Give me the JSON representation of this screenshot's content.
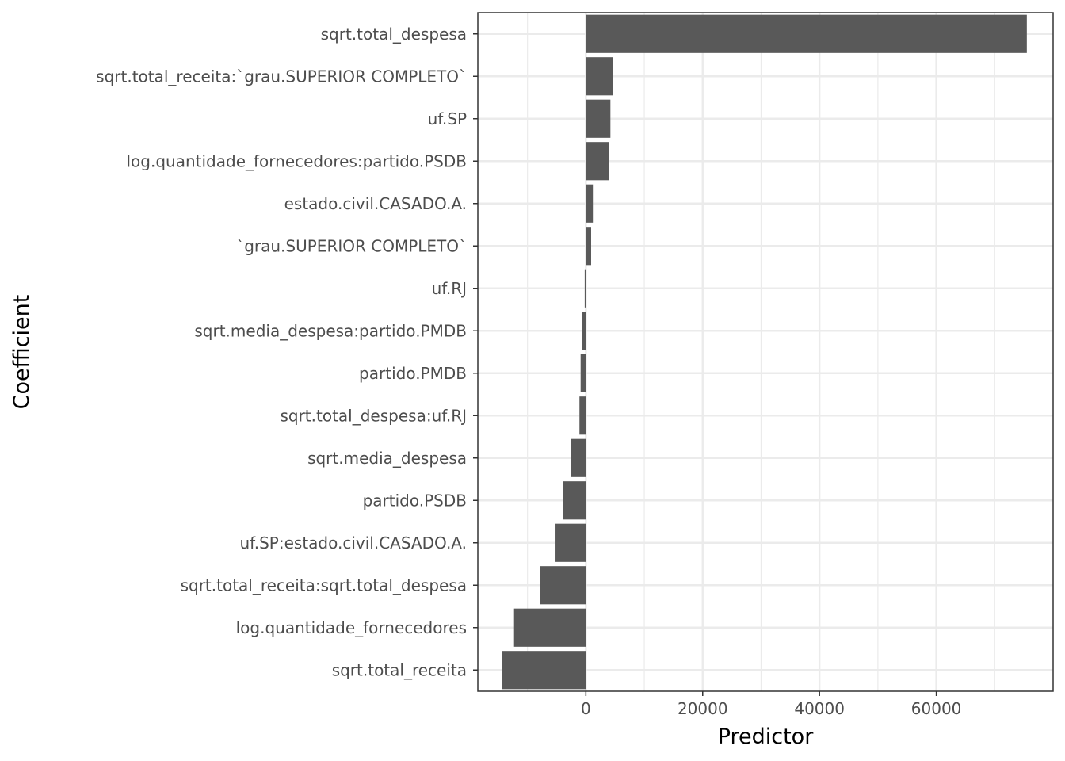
{
  "chart_data": {
    "type": "bar",
    "orientation": "horizontal",
    "xlabel": "Predictor",
    "ylabel": "Coefficient",
    "xlim": [
      -18500,
      80000
    ],
    "x_ticks": [
      0,
      20000,
      40000,
      60000
    ],
    "x_tick_labels": [
      "0",
      "20000",
      "40000",
      "60000"
    ],
    "grid": true,
    "bar_color": "#595959",
    "categories": [
      "sqrt.total_despesa",
      "sqrt.total_receita:`grau.SUPERIOR COMPLETO`",
      "uf.SP",
      "log.quantidade_fornecedores:partido.PSDB",
      "estado.civil.CASADO.A.",
      "`grau.SUPERIOR COMPLETO`",
      "uf.RJ",
      "sqrt.media_despesa:partido.PMDB",
      "partido.PMDB",
      "sqrt.total_despesa:uf.RJ",
      "sqrt.media_despesa",
      "partido.PSDB",
      "uf.SP:estado.civil.CASADO.A.",
      "sqrt.total_receita:sqrt.total_despesa",
      "log.quantidade_fornecedores",
      "sqrt.total_receita"
    ],
    "values": [
      75500,
      4600,
      4200,
      4000,
      1200,
      900,
      -200,
      -700,
      -900,
      -1100,
      -2500,
      -3900,
      -5200,
      -7900,
      -12300,
      -14300
    ]
  }
}
